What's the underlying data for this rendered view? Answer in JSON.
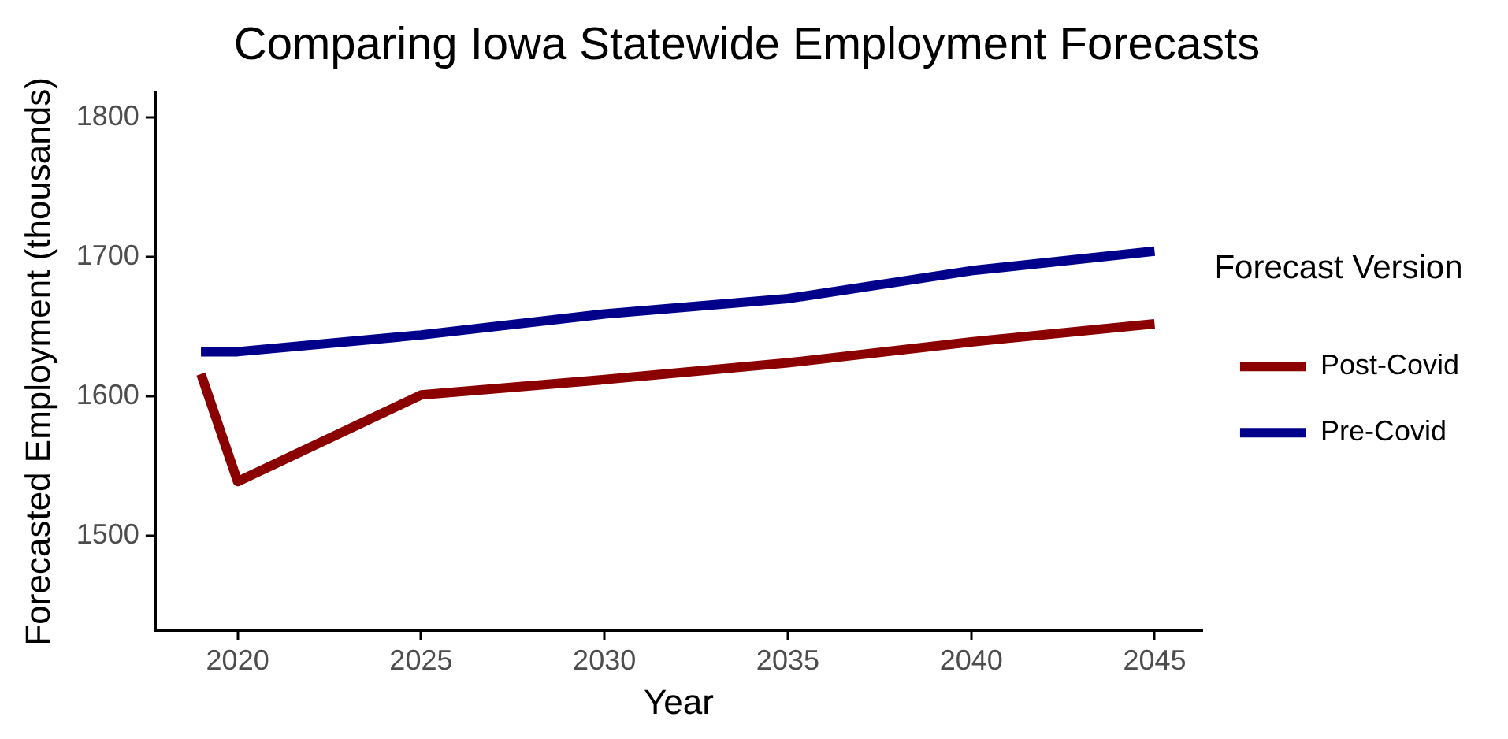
{
  "chart_data": {
    "type": "line",
    "title": "Comparing Iowa Statewide Employment Forecasts",
    "xlabel": "Year",
    "ylabel": "Forecasted Employment (thousands)",
    "legend_title": "Forecast Version",
    "x": [
      2019,
      2020,
      2025,
      2030,
      2035,
      2040,
      2045
    ],
    "series": [
      {
        "name": "Post-Covid",
        "color": "#8b0000",
        "values": [
          1616,
          1539,
          1601,
          1612,
          1624,
          1639,
          1652
        ]
      },
      {
        "name": "Pre-Covid",
        "color": "#00008b",
        "values": [
          1632,
          1632,
          1644,
          1659,
          1670,
          1690,
          1704
        ]
      }
    ],
    "xlim": [
      2017.75,
      2046.3
    ],
    "xticks": [
      2020,
      2025,
      2030,
      2035,
      2040,
      2045
    ],
    "ylim": [
      1432.5,
      1817.5
    ],
    "yticks": [
      1500,
      1600,
      1700,
      1800
    ],
    "grid": false,
    "legend": "right",
    "marker": "none",
    "line_style": "solid"
  }
}
